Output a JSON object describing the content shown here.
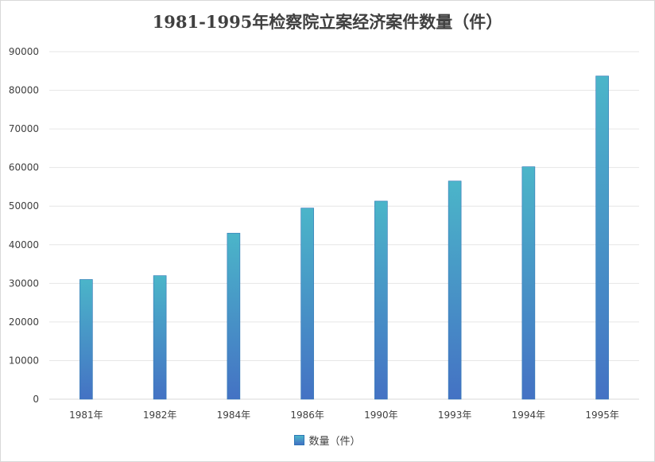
{
  "chart_data": {
    "type": "bar",
    "title": "1981-1995年检察院立案经济案件数量（件）",
    "categories": [
      "1981年",
      "1982年",
      "1984年",
      "1986年",
      "1990年",
      "1993年",
      "1994年",
      "1995年"
    ],
    "series": [
      {
        "name": "数量（件）",
        "values": [
          31000,
          32000,
          43000,
          49500,
          51300,
          56500,
          60200,
          83700
        ]
      }
    ],
    "ylim": [
      0,
      90000
    ],
    "yticks": [
      0,
      10000,
      20000,
      30000,
      40000,
      50000,
      60000,
      70000,
      80000,
      90000
    ],
    "grid": true,
    "legend_position": "bottom",
    "colors": {
      "bar_top": "#4bb5c9",
      "bar_bottom": "#4472c4",
      "gridline": "#e6e6e6",
      "text": "#404040"
    }
  }
}
